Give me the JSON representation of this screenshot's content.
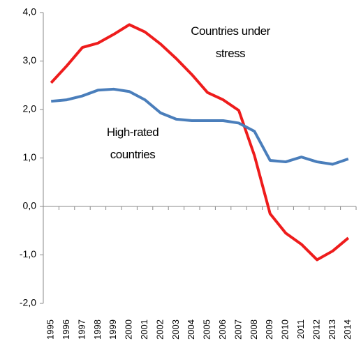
{
  "chart_data": {
    "type": "line",
    "categories": [
      "1995",
      "1996",
      "1997",
      "1998",
      "1999",
      "2000",
      "2001",
      "2002",
      "2003",
      "2004",
      "2005",
      "2006",
      "2007",
      "2008",
      "2009",
      "2010",
      "2011",
      "2012",
      "2013",
      "2014"
    ],
    "series": [
      {
        "name": "Countries under stress",
        "color": "#ee1c1c",
        "values": [
          2.55,
          2.9,
          3.28,
          3.37,
          3.55,
          3.75,
          3.6,
          3.35,
          3.05,
          2.72,
          2.35,
          2.2,
          1.98,
          1.05,
          -0.15,
          -0.55,
          -0.78,
          -1.1,
          -0.92,
          -0.65
        ]
      },
      {
        "name": "High-rated countries",
        "color": "#4a7ebb",
        "values": [
          2.17,
          2.2,
          2.28,
          2.4,
          2.42,
          2.37,
          2.2,
          1.93,
          1.8,
          1.77,
          1.77,
          1.77,
          1.72,
          1.55,
          0.95,
          0.92,
          1.02,
          0.92,
          0.87,
          0.98
        ]
      }
    ],
    "ylim": [
      -2,
      4
    ],
    "yticks": [
      {
        "value": -2,
        "label": "-2,0"
      },
      {
        "value": -1,
        "label": "-1,0"
      },
      {
        "value": 0,
        "label": "0,0"
      },
      {
        "value": 1,
        "label": "1,0"
      },
      {
        "value": 2,
        "label": "2,0"
      },
      {
        "value": 3,
        "label": "3,0"
      },
      {
        "value": 4,
        "label": "4,0"
      }
    ]
  }
}
